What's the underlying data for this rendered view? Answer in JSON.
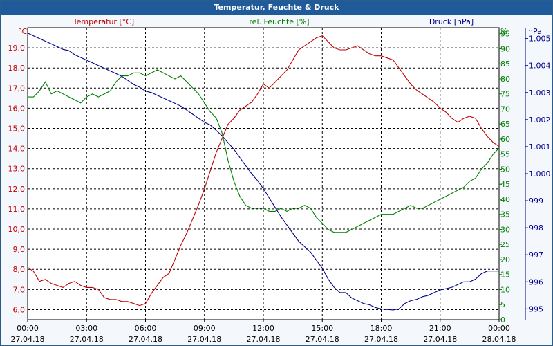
{
  "window": {
    "title": "Temperatur, Feuchte & Druck"
  },
  "colors": {
    "temperature": "#c00000",
    "humidity": "#008000",
    "pressure": "#00008b",
    "titlebar": "#1f5a9b",
    "grid": "#000000",
    "text": "#000000"
  },
  "chart_data": {
    "type": "line",
    "title": "Temperatur, Feuchte & Druck",
    "grid": true,
    "x_ticks": [
      {
        "time": "00:00",
        "date": "27.04.18"
      },
      {
        "time": "03:00",
        "date": "27.04.18"
      },
      {
        "time": "06:00",
        "date": "27.04.18"
      },
      {
        "time": "09:00",
        "date": "27.04.18"
      },
      {
        "time": "12:00",
        "date": "27.04.18"
      },
      {
        "time": "15:00",
        "date": "27.04.18"
      },
      {
        "time": "18:00",
        "date": "27.04.18"
      },
      {
        "time": "21:00",
        "date": "27.04.18"
      },
      {
        "time": "00:00",
        "date": "28.04.18"
      }
    ],
    "axes": {
      "temperature": {
        "label": "Temperatur [°C]",
        "unit": "°C",
        "range": [
          5.5,
          20.0
        ],
        "ticks": [
          "6,0",
          "7,0",
          "8,0",
          "9,0",
          "10,0",
          "11,0",
          "12,0",
          "13,0",
          "14,0",
          "15,0",
          "16,0",
          "17,0",
          "18,0",
          "19,0"
        ],
        "tick_values": [
          6,
          7,
          8,
          9,
          10,
          11,
          12,
          13,
          14,
          15,
          16,
          17,
          18,
          19
        ]
      },
      "humidity": {
        "label": "rel. Feuchte [%]",
        "unit": "%",
        "range": [
          0,
          97
        ],
        "ticks": [
          "0",
          "5",
          "10",
          "15",
          "20",
          "25",
          "30",
          "35",
          "40",
          "45",
          "50",
          "55",
          "60",
          "65",
          "70",
          "75",
          "80",
          "85",
          "90",
          "95"
        ],
        "tick_values": [
          0,
          5,
          10,
          15,
          20,
          25,
          30,
          35,
          40,
          45,
          50,
          55,
          60,
          65,
          70,
          75,
          80,
          85,
          90,
          95
        ]
      },
      "pressure": {
        "label": "Druck [hPa]",
        "unit": "hPa",
        "range": [
          994.6,
          1005.4
        ],
        "ticks": [
          "995",
          "996",
          "997",
          "998",
          "999",
          "1.000",
          "1.001",
          "1.002",
          "1.003",
          "1.004",
          "1.005"
        ],
        "tick_values": [
          995,
          996,
          997,
          998,
          999,
          1000,
          1001,
          1002,
          1003,
          1004,
          1005
        ]
      }
    },
    "series": [
      {
        "name": "Temperatur [°C]",
        "axis": "temperature",
        "x": [
          0,
          0.3,
          0.6,
          0.9,
          1.2,
          1.5,
          1.8,
          2.1,
          2.4,
          2.7,
          3.0,
          3.3,
          3.6,
          3.9,
          4.2,
          4.5,
          4.8,
          5.1,
          5.4,
          5.7,
          6.0,
          6.3,
          6.6,
          6.9,
          7.2,
          7.5,
          7.8,
          8.1,
          8.4,
          8.7,
          9.0,
          9.3,
          9.6,
          9.9,
          10.2,
          10.5,
          10.8,
          11.1,
          11.4,
          11.7,
          12.0,
          12.3,
          12.6,
          12.9,
          13.2,
          13.5,
          13.8,
          14.1,
          14.4,
          14.7,
          15.0,
          15.3,
          15.6,
          15.9,
          16.2,
          16.5,
          16.8,
          17.1,
          17.4,
          17.7,
          18.0,
          18.3,
          18.6,
          18.9,
          19.2,
          19.5,
          19.8,
          20.1,
          20.4,
          20.7,
          21.0,
          21.3,
          21.6,
          21.9,
          22.2,
          22.5,
          22.8,
          23.1,
          23.4,
          23.7,
          24.0
        ],
        "values": [
          8.1,
          7.9,
          7.4,
          7.5,
          7.3,
          7.2,
          7.1,
          7.3,
          7.4,
          7.2,
          7.1,
          7.1,
          7.0,
          6.6,
          6.5,
          6.5,
          6.4,
          6.4,
          6.3,
          6.2,
          6.3,
          6.8,
          7.2,
          7.6,
          7.8,
          8.5,
          9.2,
          9.8,
          10.5,
          11.2,
          12.0,
          12.9,
          13.8,
          14.5,
          15.2,
          15.5,
          15.9,
          16.1,
          16.3,
          16.7,
          17.2,
          17.0,
          17.3,
          17.6,
          17.9,
          18.4,
          18.9,
          19.1,
          19.3,
          19.5,
          19.6,
          19.3,
          19.0,
          18.9,
          18.9,
          19.0,
          19.1,
          18.9,
          18.7,
          18.6,
          18.6,
          18.5,
          18.4,
          18.0,
          17.6,
          17.2,
          16.9,
          16.7,
          16.5,
          16.3,
          16.0,
          15.8,
          15.5,
          15.3,
          15.5,
          15.6,
          15.5,
          15.0,
          14.6,
          14.3,
          14.1
        ]
      },
      {
        "name": "rel. Feuchte [%]",
        "axis": "humidity",
        "x": [
          0,
          0.3,
          0.6,
          0.9,
          1.2,
          1.5,
          1.8,
          2.1,
          2.4,
          2.7,
          3.0,
          3.3,
          3.6,
          3.9,
          4.2,
          4.5,
          4.8,
          5.1,
          5.4,
          5.7,
          6.0,
          6.3,
          6.6,
          6.9,
          7.2,
          7.5,
          7.8,
          8.1,
          8.4,
          8.7,
          9.0,
          9.3,
          9.6,
          9.9,
          10.2,
          10.5,
          10.8,
          11.1,
          11.4,
          11.7,
          12.0,
          12.3,
          12.6,
          12.9,
          13.2,
          13.5,
          13.8,
          14.1,
          14.4,
          14.7,
          15.0,
          15.3,
          15.6,
          15.9,
          16.2,
          16.5,
          16.8,
          17.1,
          17.4,
          17.7,
          18.0,
          18.3,
          18.6,
          18.9,
          19.2,
          19.5,
          19.8,
          20.1,
          20.4,
          20.7,
          21.0,
          21.3,
          21.6,
          21.9,
          22.2,
          22.5,
          22.8,
          23.1,
          23.4,
          23.7,
          24.0
        ],
        "values": [
          74,
          74,
          76,
          79,
          75,
          76,
          75,
          74,
          73,
          72,
          74,
          75,
          74,
          75,
          76,
          79,
          81,
          81,
          82,
          82,
          81,
          82,
          83,
          82,
          81,
          80,
          81,
          79,
          77,
          75,
          72,
          69,
          67,
          62,
          53,
          46,
          41,
          38,
          37,
          37,
          37,
          36,
          36,
          37,
          36,
          37,
          37,
          38,
          37,
          34,
          32,
          30,
          29,
          29,
          29,
          30,
          31,
          32,
          33,
          34,
          35,
          35,
          35,
          36,
          37,
          38,
          37,
          37,
          38,
          39,
          40,
          41,
          42,
          43,
          44,
          46,
          47,
          50,
          52,
          55,
          57
        ]
      },
      {
        "name": "Druck [hPa]",
        "axis": "pressure",
        "x": [
          0,
          0.3,
          0.6,
          0.9,
          1.2,
          1.5,
          1.8,
          2.1,
          2.4,
          2.7,
          3.0,
          3.3,
          3.6,
          3.9,
          4.2,
          4.5,
          4.8,
          5.1,
          5.4,
          5.7,
          6.0,
          6.3,
          6.6,
          6.9,
          7.2,
          7.5,
          7.8,
          8.1,
          8.4,
          8.7,
          9.0,
          9.3,
          9.6,
          9.9,
          10.2,
          10.5,
          10.8,
          11.1,
          11.4,
          11.7,
          12.0,
          12.3,
          12.6,
          12.9,
          13.2,
          13.5,
          13.8,
          14.1,
          14.4,
          14.7,
          15.0,
          15.3,
          15.6,
          15.9,
          16.2,
          16.5,
          16.8,
          17.1,
          17.4,
          17.7,
          18.0,
          18.3,
          18.6,
          18.9,
          19.2,
          19.5,
          19.8,
          20.1,
          20.4,
          20.7,
          21.0,
          21.3,
          21.6,
          21.9,
          22.2,
          22.5,
          22.8,
          23.1,
          23.4,
          23.7,
          24.0
        ],
        "values": [
          1005.2,
          1005.1,
          1005.0,
          1004.9,
          1004.8,
          1004.7,
          1004.6,
          1004.55,
          1004.4,
          1004.3,
          1004.2,
          1004.1,
          1004.0,
          1003.9,
          1003.8,
          1003.7,
          1003.6,
          1003.45,
          1003.3,
          1003.2,
          1003.05,
          1003.0,
          1002.9,
          1002.8,
          1002.7,
          1002.6,
          1002.5,
          1002.35,
          1002.2,
          1002.05,
          1001.9,
          1001.8,
          1001.6,
          1001.4,
          1001.15,
          1000.9,
          1000.6,
          1000.3,
          1000.0,
          999.75,
          999.45,
          999.1,
          998.75,
          998.4,
          998.1,
          997.8,
          997.5,
          997.3,
          997.1,
          996.8,
          996.5,
          996.1,
          995.8,
          995.6,
          995.6,
          995.4,
          995.3,
          995.2,
          995.15,
          995.05,
          995.0,
          994.98,
          994.96,
          995.0,
          995.2,
          995.3,
          995.35,
          995.45,
          995.5,
          995.6,
          995.7,
          995.75,
          995.8,
          995.9,
          996.0,
          996.0,
          996.1,
          996.3,
          996.4,
          996.4,
          996.4
        ]
      }
    ]
  }
}
